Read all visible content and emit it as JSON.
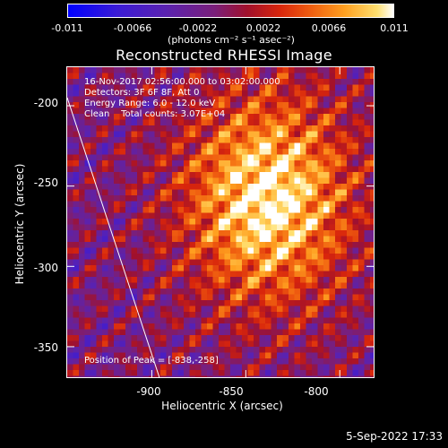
{
  "chart_data": {
    "type": "heatmap",
    "title": "Reconstructed RHESSI Image",
    "xlabel": "Heliocentric X (arcsec)",
    "ylabel": "Heliocentric Y (arcsec)",
    "xlim": [
      -945,
      -782
    ],
    "ylim": [
      -369,
      -176
    ],
    "x_ticks": [
      -900,
      -850,
      -800
    ],
    "y_ticks": [
      -200,
      -250,
      -300,
      -350
    ],
    "colorbar": {
      "ticks": [
        "-0.011",
        "-0.0066",
        "-0.0022",
        "0.0022",
        "0.0066",
        "0.011"
      ],
      "range": [
        -0.011,
        0.011
      ],
      "unit_label": "(photons cm⁻² s⁻¹ asec⁻²)"
    },
    "annotations": {
      "line1": "16-Nov-2017 02:56:00.000 to 03:02:00.000",
      "line2": "Detectors: 3F 6F 8F, Att 0",
      "line3": "Energy Range: 6.0 - 12.0 keV",
      "line4": "Clean    Total counts: 3.07E+04",
      "peak": "Position of Peak = [-838,-258]"
    },
    "peak_position": [
      -838,
      -258
    ],
    "limb_line": [
      [
        -945,
        -195
      ],
      [
        -896,
        -369
      ]
    ],
    "grid": false
  },
  "footer": {
    "date": "5-Sep-2022 17:33"
  }
}
